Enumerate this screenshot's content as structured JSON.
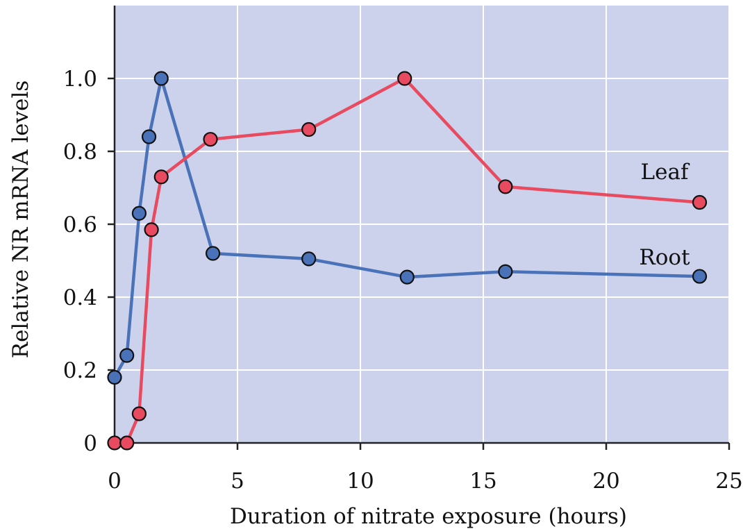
{
  "chart_data": {
    "type": "line",
    "title": "",
    "xlabel": "Duration of nitrate exposure (hours)",
    "ylabel": "Relative NR mRNA levels",
    "xlim": [
      0,
      25
    ],
    "ylim": [
      0,
      1.2
    ],
    "x_ticks": [
      0,
      5,
      10,
      15,
      20,
      25
    ],
    "x_tick_labels": [
      "0",
      "5",
      "10",
      "15",
      "20",
      "25"
    ],
    "y_ticks": [
      0,
      0.2,
      0.4,
      0.6,
      0.8,
      1.0
    ],
    "y_tick_labels": [
      "0",
      "0.2",
      "0.4",
      "0.6",
      "0.8",
      "1.0"
    ],
    "grid": true,
    "plot_background": "#ccd2ec",
    "grid_color": "#ffffff",
    "series": [
      {
        "name": "Root",
        "color": "#4a72b8",
        "x": [
          0,
          0.5,
          1,
          1.4,
          1.9,
          4,
          7.9,
          11.9,
          15.9,
          23.8
        ],
        "y": [
          0.18,
          0.24,
          0.63,
          0.84,
          1.0,
          0.52,
          0.505,
          0.455,
          0.47,
          0.457
        ]
      },
      {
        "name": "Leaf",
        "color": "#e84a5f",
        "x": [
          0,
          0.5,
          1,
          1.5,
          1.9,
          3.9,
          7.9,
          11.8,
          15.9,
          23.8
        ],
        "y": [
          0.0,
          0.0,
          0.08,
          0.585,
          0.73,
          0.833,
          0.86,
          1.0,
          0.703,
          0.66
        ]
      }
    ]
  }
}
